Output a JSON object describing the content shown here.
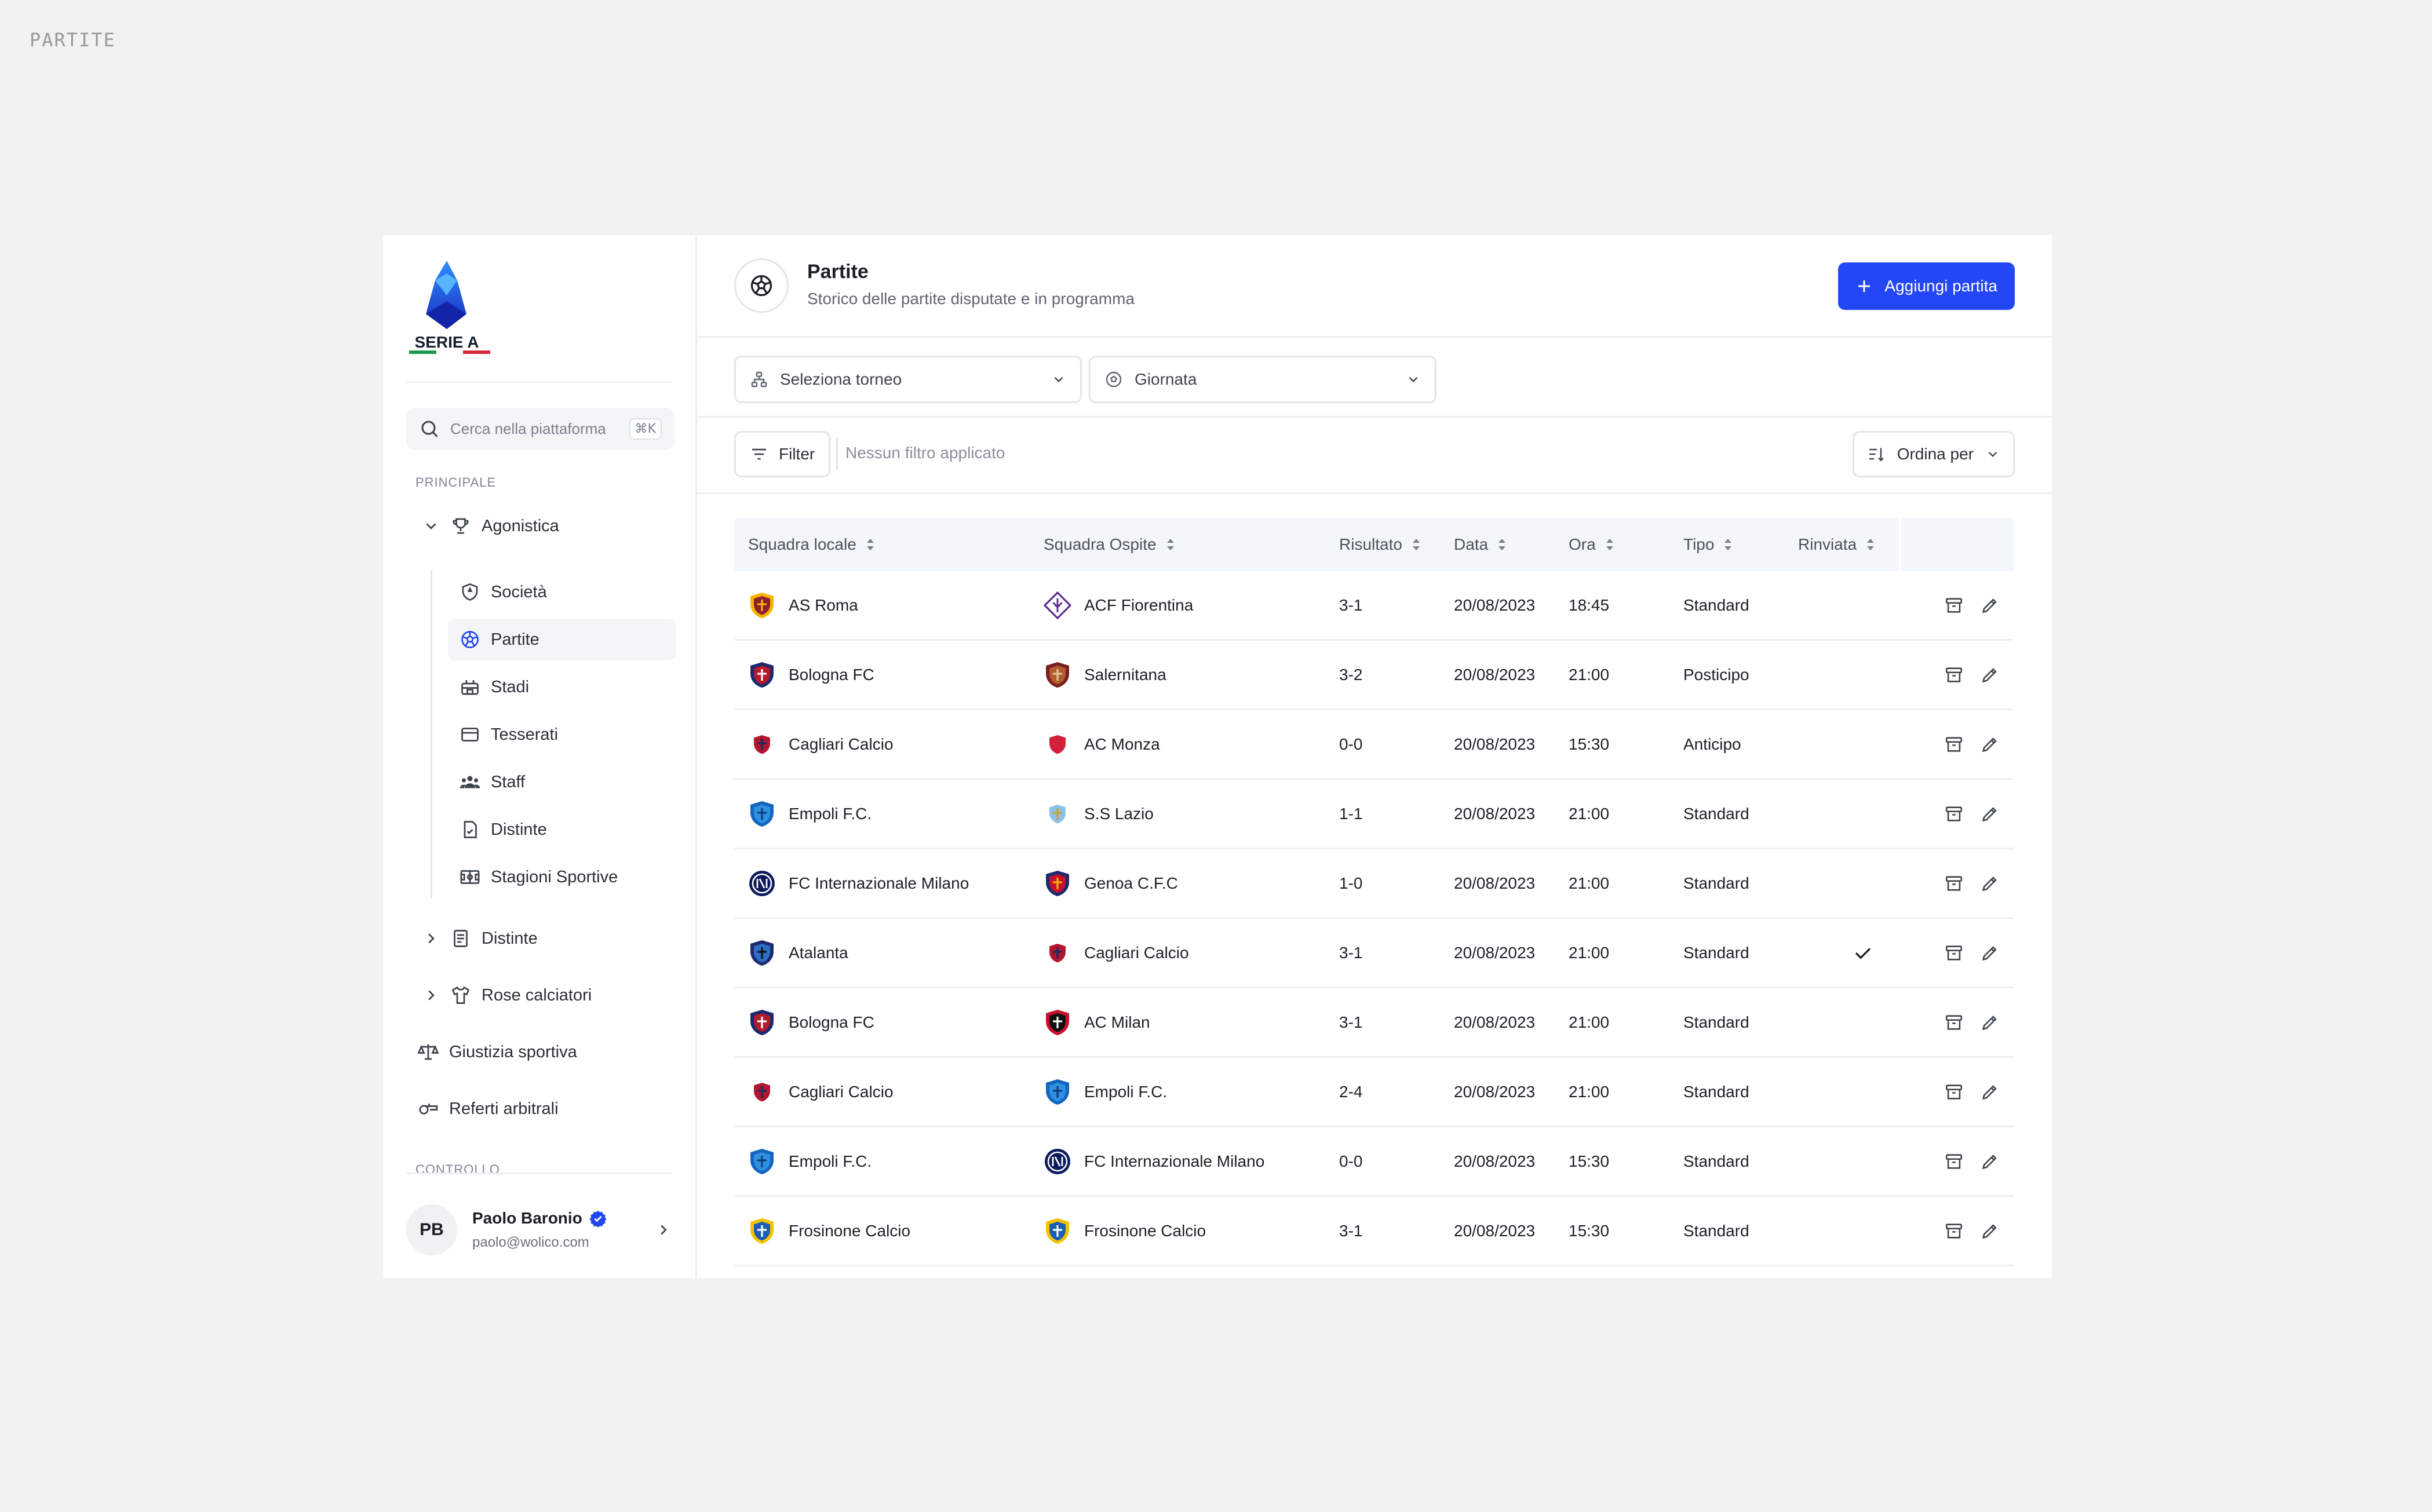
{
  "page_label": "PARTITE",
  "brand": {
    "name": "SERIE A",
    "colors": [
      "#1a9b4f",
      "#ffffff",
      "#d42a3c"
    ]
  },
  "search": {
    "placeholder": "Cerca nella piattaforma",
    "shortcut": "⌘K"
  },
  "nav": {
    "principale_label": "PRINCIPALE",
    "agonistica": {
      "label": "Agonistica",
      "icon": "trophy-icon",
      "expanded": true
    },
    "sub_items": [
      {
        "label": "Società",
        "icon": "shield-icon"
      },
      {
        "label": "Partite",
        "icon": "soccer-ball-icon",
        "active": true
      },
      {
        "label": "Stadi",
        "icon": "stadium-icon"
      },
      {
        "label": "Tesserati",
        "icon": "card-icon"
      },
      {
        "label": "Staff",
        "icon": "people-icon"
      },
      {
        "label": "Distinte",
        "icon": "document-icon"
      },
      {
        "label": "Stagioni Sportive",
        "icon": "pitch-icon"
      }
    ],
    "distinte": {
      "label": "Distinte",
      "icon": "list-document-icon"
    },
    "rose": {
      "label": "Rose calciatori",
      "icon": "shirt-icon"
    },
    "giustizia": {
      "label": "Giustizia sportiva",
      "icon": "scales-icon"
    },
    "referti": {
      "label": "Referti arbitrali",
      "icon": "whistle-icon"
    },
    "controllo_label": "CONTROLLO"
  },
  "user": {
    "initials": "PB",
    "name": "Paolo Baronio",
    "email": "paolo@wolico.com",
    "verified": true
  },
  "header": {
    "title": "Partite",
    "subtitle": "Storico delle partite disputate e in programma",
    "add_button": "Aggiungi partita",
    "accent": "#2347f4"
  },
  "filters": {
    "tournament_placeholder": "Seleziona torneo",
    "matchday_placeholder": "Giornata",
    "filter_button": "Filter",
    "no_filter": "Nessun filtro applicato",
    "sort_button": "Ordina per"
  },
  "table": {
    "columns": [
      "Squadra locale",
      "Squadra Ospite",
      "Risultato",
      "Data",
      "Ora",
      "Tipo",
      "Rinviata"
    ],
    "rows": [
      {
        "home": "AS Roma",
        "home_crest": "roma",
        "away": "ACF Fiorentina",
        "away_crest": "fiorentina",
        "result": "3-1",
        "date": "20/08/2023",
        "time": "18:45",
        "type": "Standard",
        "postponed": false
      },
      {
        "home": "Bologna FC",
        "home_crest": "bologna",
        "away": "Salernitana",
        "away_crest": "salernitana",
        "result": "3-2",
        "date": "20/08/2023",
        "time": "21:00",
        "type": "Posticipo",
        "postponed": false
      },
      {
        "home": "Cagliari Calcio",
        "home_crest": "cagliari",
        "away": "AC Monza",
        "away_crest": "monza",
        "result": "0-0",
        "date": "20/08/2023",
        "time": "15:30",
        "type": "Anticipo",
        "postponed": false
      },
      {
        "home": "Empoli F.C.",
        "home_crest": "empoli",
        "away": "S.S Lazio",
        "away_crest": "lazio",
        "result": "1-1",
        "date": "20/08/2023",
        "time": "21:00",
        "type": "Standard",
        "postponed": false
      },
      {
        "home": "FC Internazionale Milano",
        "home_crest": "inter",
        "away": "Genoa C.F.C",
        "away_crest": "genoa",
        "result": "1-0",
        "date": "20/08/2023",
        "time": "21:00",
        "type": "Standard",
        "postponed": false
      },
      {
        "home": "Atalanta",
        "home_crest": "atalanta",
        "away": "Cagliari Calcio",
        "away_crest": "cagliari",
        "result": "3-1",
        "date": "20/08/2023",
        "time": "21:00",
        "type": "Standard",
        "postponed": true
      },
      {
        "home": "Bologna FC",
        "home_crest": "bologna",
        "away": "AC Milan",
        "away_crest": "milan",
        "result": "3-1",
        "date": "20/08/2023",
        "time": "21:00",
        "type": "Standard",
        "postponed": false
      },
      {
        "home": "Cagliari Calcio",
        "home_crest": "cagliari",
        "away": "Empoli F.C.",
        "away_crest": "empoli",
        "result": "2-4",
        "date": "20/08/2023",
        "time": "21:00",
        "type": "Standard",
        "postponed": false
      },
      {
        "home": "Empoli F.C.",
        "home_crest": "empoli",
        "away": "FC Internazionale Milano",
        "away_crest": "inter",
        "result": "0-0",
        "date": "20/08/2023",
        "time": "15:30",
        "type": "Standard",
        "postponed": false
      },
      {
        "home": "Frosinone Calcio",
        "home_crest": "frosinone",
        "away": "Frosinone Calcio",
        "away_crest": "frosinone",
        "result": "3-1",
        "date": "20/08/2023",
        "time": "15:30",
        "type": "Standard",
        "postponed": false
      }
    ]
  }
}
